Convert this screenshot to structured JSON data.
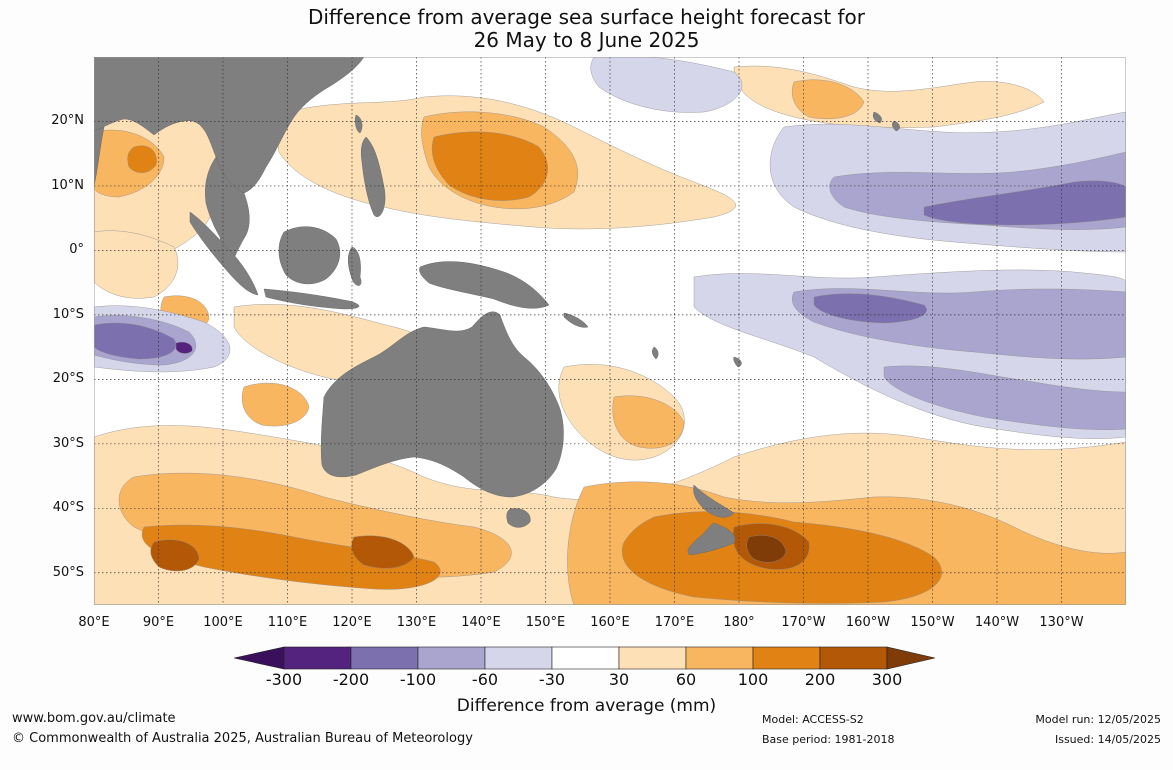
{
  "title": {
    "line1": "Difference from average sea surface height forecast for",
    "line2": "26 May to 8 June 2025"
  },
  "axes": {
    "lat_labels": [
      "20°N",
      "10°N",
      "0°",
      "10°S",
      "20°S",
      "30°S",
      "40°S",
      "50°S"
    ],
    "lat_values": [
      20,
      10,
      0,
      -10,
      -20,
      -30,
      -40,
      -50
    ],
    "lon_labels": [
      "80°E",
      "90°E",
      "100°E",
      "110°E",
      "120°E",
      "130°E",
      "140°E",
      "150°E",
      "160°E",
      "170°E",
      "180°",
      "170°W",
      "160°W",
      "150°W",
      "140°W",
      "130°W"
    ],
    "lon_values": [
      80,
      90,
      100,
      110,
      120,
      130,
      140,
      150,
      160,
      170,
      180,
      190,
      200,
      210,
      220,
      230
    ],
    "lon_range": [
      80,
      240
    ],
    "lat_range": [
      -55,
      30
    ],
    "gridlines": "dotted"
  },
  "colorbar": {
    "ticks": [
      "-300",
      "-200",
      "-100",
      "-60",
      "-30",
      "30",
      "60",
      "100",
      "200",
      "300"
    ],
    "colors": [
      "#3a0f5c",
      "#54237e",
      "#7c70ae",
      "#aaa5cf",
      "#d6d6ea",
      "#ffffff",
      "#fee0b6",
      "#f9b660",
      "#e08214",
      "#b35806",
      "#7f3b08"
    ],
    "label": "Difference from average (mm)",
    "extend": "both"
  },
  "land_color": "#7f7f7f",
  "footer": {
    "website": "www.bom.gov.au/climate",
    "copyright": "© Commonwealth of Australia 2025, Australian Bureau of Meteorology",
    "model": "Model: ACCESS-S2",
    "base_period": "Base period: 1981-2018",
    "model_run": "Model run: 12/05/2025",
    "issued": "Issued: 14/05/2025"
  }
}
